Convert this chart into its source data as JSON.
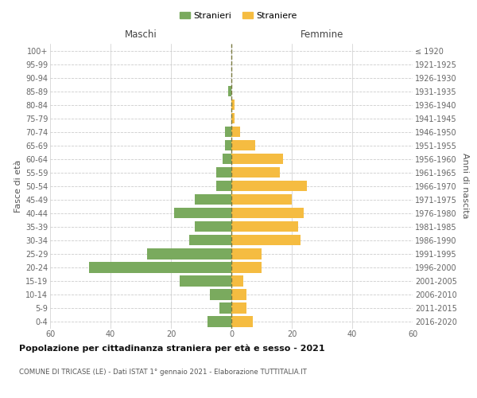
{
  "age_groups": [
    "0-4",
    "5-9",
    "10-14",
    "15-19",
    "20-24",
    "25-29",
    "30-34",
    "35-39",
    "40-44",
    "45-49",
    "50-54",
    "55-59",
    "60-64",
    "65-69",
    "70-74",
    "75-79",
    "80-84",
    "85-89",
    "90-94",
    "95-99",
    "100+"
  ],
  "birth_years": [
    "2016-2020",
    "2011-2015",
    "2006-2010",
    "2001-2005",
    "1996-2000",
    "1991-1995",
    "1986-1990",
    "1981-1985",
    "1976-1980",
    "1971-1975",
    "1966-1970",
    "1961-1965",
    "1956-1960",
    "1951-1955",
    "1946-1950",
    "1941-1945",
    "1936-1940",
    "1931-1935",
    "1926-1930",
    "1921-1925",
    "≤ 1920"
  ],
  "males": [
    8,
    4,
    7,
    17,
    47,
    28,
    14,
    12,
    19,
    12,
    5,
    5,
    3,
    2,
    2,
    0,
    0,
    1,
    0,
    0,
    0
  ],
  "females": [
    7,
    5,
    5,
    4,
    10,
    10,
    23,
    22,
    24,
    20,
    25,
    16,
    17,
    8,
    3,
    1,
    1,
    0,
    0,
    0,
    0
  ],
  "male_color": "#7aaa5e",
  "female_color": "#f5bc41",
  "dashed_line_color": "#7a7a40",
  "grid_color": "#cccccc",
  "title": "Popolazione per cittadinanza straniera per età e sesso - 2021",
  "subtitle": "COMUNE DI TRICASE (LE) - Dati ISTAT 1° gennaio 2021 - Elaborazione TUTTITALIA.IT",
  "ylabel_left": "Fasce di età",
  "ylabel_right": "Anni di nascita",
  "header_left": "Maschi",
  "header_right": "Femmine",
  "legend_male": "Stranieri",
  "legend_female": "Straniere",
  "xlim": 60,
  "background_color": "#ffffff"
}
